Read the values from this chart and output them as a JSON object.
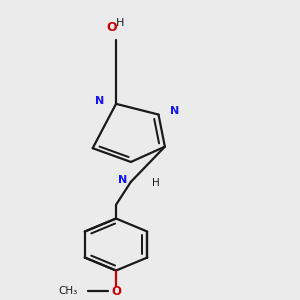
{
  "bg_color": "#ebebeb",
  "bond_color": "#1a1a1a",
  "nitrogen_color": "#1414ee",
  "oxygen_color": "#cc0000",
  "line_width": 1.6,
  "dbo": 0.012,
  "xlim": [
    0.15,
    0.85
  ],
  "ylim": [
    0.02,
    0.98
  ],
  "pN1": [
    0.42,
    0.645
  ],
  "pN2": [
    0.52,
    0.61
  ],
  "pC3": [
    0.535,
    0.505
  ],
  "pC4": [
    0.455,
    0.455
  ],
  "pC5": [
    0.365,
    0.5
  ],
  "ch2a": [
    0.42,
    0.755
  ],
  "ch2b": [
    0.42,
    0.855
  ],
  "pNH": [
    0.455,
    0.39
  ],
  "pCH2c": [
    0.42,
    0.315
  ],
  "bx": 0.42,
  "by": 0.185,
  "br": 0.085,
  "methoxy_label": "O",
  "methyl_label": "CH₃",
  "ho_label": "HO",
  "h_label": "H"
}
